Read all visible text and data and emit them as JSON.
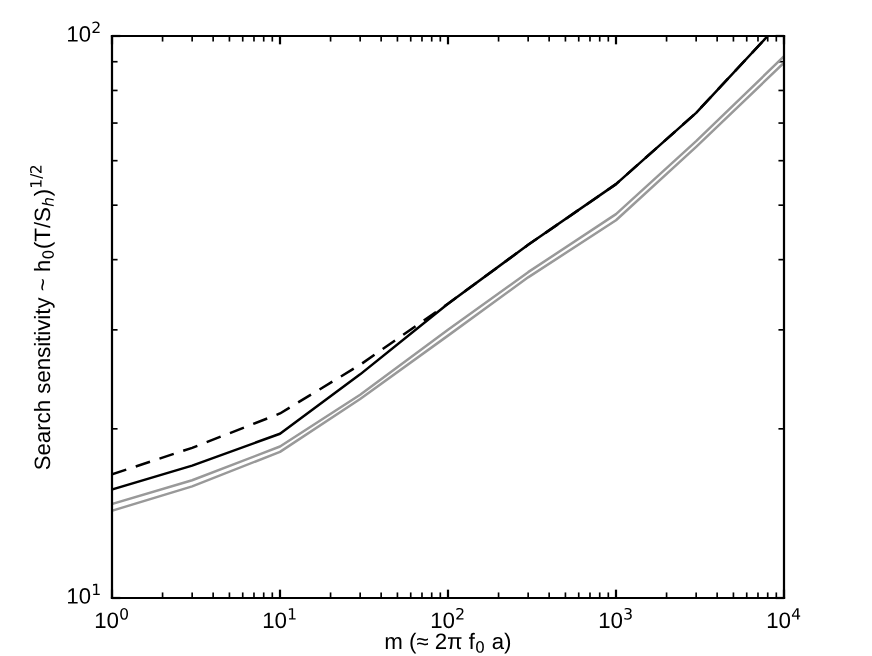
{
  "chart_data": {
    "type": "line",
    "xlabel": "m (≈ 2π f$_{0}$ a)",
    "ylabel": "Search sensitivity ~ h$_{0}$(T/S$_{h}$)$^{1/2}$",
    "log": "xy",
    "xlim": [
      1,
      10000
    ],
    "ylim": [
      10,
      100
    ],
    "xticks": [
      {
        "value": 1,
        "label": "10$^{0}$"
      },
      {
        "value": 10,
        "label": "10$^{1}$"
      },
      {
        "value": 100,
        "label": "10$^{2}$"
      },
      {
        "value": 1000,
        "label": "10$^{3}$"
      },
      {
        "value": 10000,
        "label": "10$^{4}$"
      }
    ],
    "yticks": [
      {
        "value": 10,
        "label": "10$^{1}$"
      },
      {
        "value": 100,
        "label": "10$^{2}$"
      }
    ],
    "grid": false,
    "legend": false,
    "series": [
      {
        "color": "#000000",
        "line_style": "dashed",
        "x": [
          1,
          3,
          10,
          30,
          100,
          300,
          1000,
          3000,
          8000
        ],
        "values": [
          16.6,
          18.5,
          21.3,
          26,
          33.4,
          42.5,
          54.5,
          73,
          100
        ]
      },
      {
        "color": "#000000",
        "line_style": "solid",
        "x": [
          1,
          3,
          10,
          30,
          100,
          300,
          1000,
          3000,
          8000
        ],
        "values": [
          15.6,
          17.2,
          19.6,
          25,
          33.4,
          42.5,
          54.5,
          73,
          100
        ]
      },
      {
        "color": "#999999",
        "line_style": "solid",
        "x": [
          1,
          3,
          10,
          30,
          100,
          300,
          1000,
          3000,
          10000
        ],
        "values": [
          14.7,
          16.2,
          18.6,
          23,
          30,
          38,
          48.2,
          65,
          92
        ]
      },
      {
        "color": "#999999",
        "line_style": "solid",
        "x": [
          1,
          3,
          10,
          30,
          100,
          300,
          1000,
          3000,
          10000
        ],
        "values": [
          14.3,
          15.8,
          18.2,
          22.6,
          29.3,
          37.2,
          47,
          63.5,
          89.6
        ]
      }
    ]
  }
}
